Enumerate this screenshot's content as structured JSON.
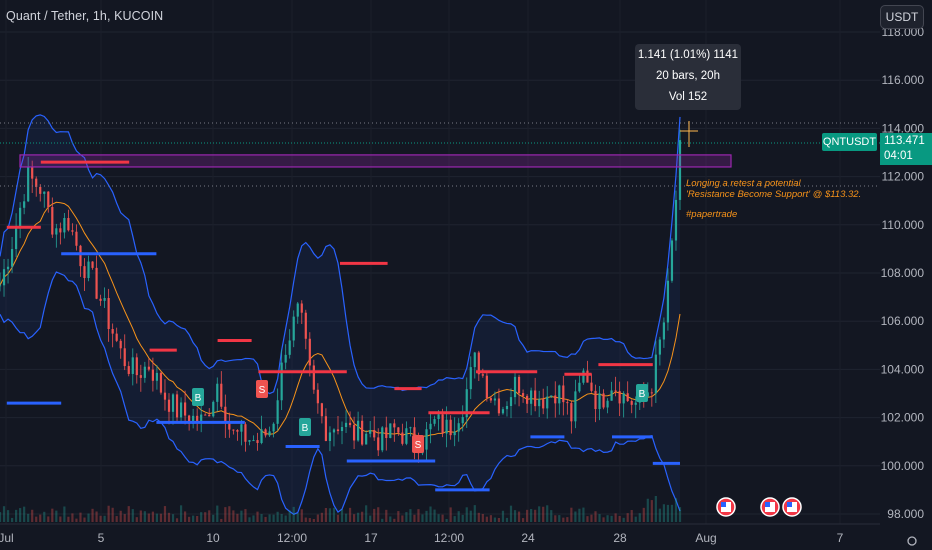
{
  "header": {
    "title": "Quant / Tether, 1h, KUCOIN",
    "currency_button": "USDT"
  },
  "tooltip": {
    "line1": "1.141 (1.01%) 1141",
    "line2": "20 bars, 20h",
    "line3": "Vol 152"
  },
  "last_price": {
    "symbol": "QNTUSDT",
    "price": "113.471",
    "countdown": "04:01"
  },
  "annotation": {
    "line1": "Longing a retest a potential",
    "line2": "'Resistance Become Support' @ $113.32.",
    "tag": "#papertrade"
  },
  "price_axis": {
    "labels": [
      "118.000",
      "116.000",
      "114.000",
      "112.000",
      "110.000",
      "108.000",
      "106.000",
      "104.000",
      "102.000",
      "100.000",
      "98.000"
    ]
  },
  "time_axis": {
    "labels": [
      "Jul",
      "5",
      "10",
      "12:00",
      "17",
      "12:00",
      "24",
      "28",
      "Aug",
      "7"
    ]
  },
  "colors": {
    "bg": "#131722",
    "up": "#26a69a",
    "down": "#ef5350",
    "band": "#2962ff",
    "ma": "#f7931a",
    "zone": "#9c27b0",
    "badge": "#089981"
  },
  "chart_data": {
    "type": "candlestick",
    "ylim": [
      97.5,
      118.5
    ],
    "close_path": [
      [
        0,
        107.5
      ],
      [
        0.02,
        109.5
      ],
      [
        0.04,
        112.0
      ],
      [
        0.06,
        111.5
      ],
      [
        0.08,
        109.8
      ],
      [
        0.1,
        110.2
      ],
      [
        0.12,
        108.5
      ],
      [
        0.14,
        107.5
      ],
      [
        0.16,
        106.0
      ],
      [
        0.18,
        104.5
      ],
      [
        0.2,
        103.8
      ],
      [
        0.22,
        104.2
      ],
      [
        0.24,
        103.0
      ],
      [
        0.26,
        102.3
      ],
      [
        0.28,
        102.0
      ],
      [
        0.3,
        101.8
      ],
      [
        0.32,
        103.5
      ],
      [
        0.34,
        101.3
      ],
      [
        0.36,
        101.2
      ],
      [
        0.38,
        101.0
      ],
      [
        0.4,
        101.6
      ],
      [
        0.42,
        105.0
      ],
      [
        0.44,
        106.5
      ],
      [
        0.46,
        103.0
      ],
      [
        0.48,
        101.5
      ],
      [
        0.5,
        101.8
      ],
      [
        0.52,
        101.3
      ],
      [
        0.54,
        101.5
      ],
      [
        0.56,
        101.0
      ],
      [
        0.58,
        101.5
      ],
      [
        0.6,
        101.2
      ],
      [
        0.62,
        101.0
      ],
      [
        0.64,
        101.8
      ],
      [
        0.66,
        101.5
      ],
      [
        0.68,
        102.5
      ],
      [
        0.7,
        104.5
      ],
      [
        0.72,
        103.0
      ],
      [
        0.74,
        102.5
      ],
      [
        0.76,
        103.5
      ],
      [
        0.78,
        103.0
      ],
      [
        0.8,
        102.8
      ],
      [
        0.82,
        103.2
      ],
      [
        0.84,
        102.0
      ],
      [
        0.86,
        104.0
      ],
      [
        0.88,
        102.5
      ],
      [
        0.9,
        103.5
      ],
      [
        0.92,
        102.8
      ],
      [
        0.94,
        102.5
      ],
      [
        0.96,
        103.5
      ],
      [
        0.98,
        106.5
      ],
      [
        1.0,
        113.0
      ]
    ],
    "resistance_zone": [
      112.4,
      112.9
    ],
    "red_levels": [
      [
        0.01,
        0.06,
        109.9
      ],
      [
        0.06,
        0.19,
        112.6
      ],
      [
        0.22,
        0.26,
        104.8
      ],
      [
        0.32,
        0.37,
        105.2
      ],
      [
        0.38,
        0.51,
        103.9
      ],
      [
        0.5,
        0.57,
        108.4
      ],
      [
        0.58,
        0.62,
        103.2
      ],
      [
        0.63,
        0.72,
        102.2
      ],
      [
        0.7,
        0.79,
        103.9
      ],
      [
        0.83,
        0.87,
        103.8
      ],
      [
        0.88,
        0.96,
        104.2
      ]
    ],
    "blue_levels": [
      [
        0.01,
        0.09,
        102.6
      ],
      [
        0.09,
        0.23,
        108.8
      ],
      [
        0.23,
        0.36,
        101.8
      ],
      [
        0.42,
        0.47,
        100.8
      ],
      [
        0.51,
        0.64,
        100.2
      ],
      [
        0.64,
        0.72,
        99.0
      ],
      [
        0.78,
        0.83,
        101.2
      ],
      [
        0.9,
        0.96,
        101.2
      ],
      [
        0.96,
        1.0,
        100.1
      ]
    ]
  },
  "markers": [
    {
      "label": "B"
    },
    {
      "label": "S"
    },
    {
      "label": "B"
    },
    {
      "label": "S"
    },
    {
      "label": "B"
    }
  ],
  "event_icons": [
    {
      "label": "us-flag-icon"
    },
    {
      "label": "us-flag-icon"
    },
    {
      "label": "us-flag-icon"
    }
  ]
}
